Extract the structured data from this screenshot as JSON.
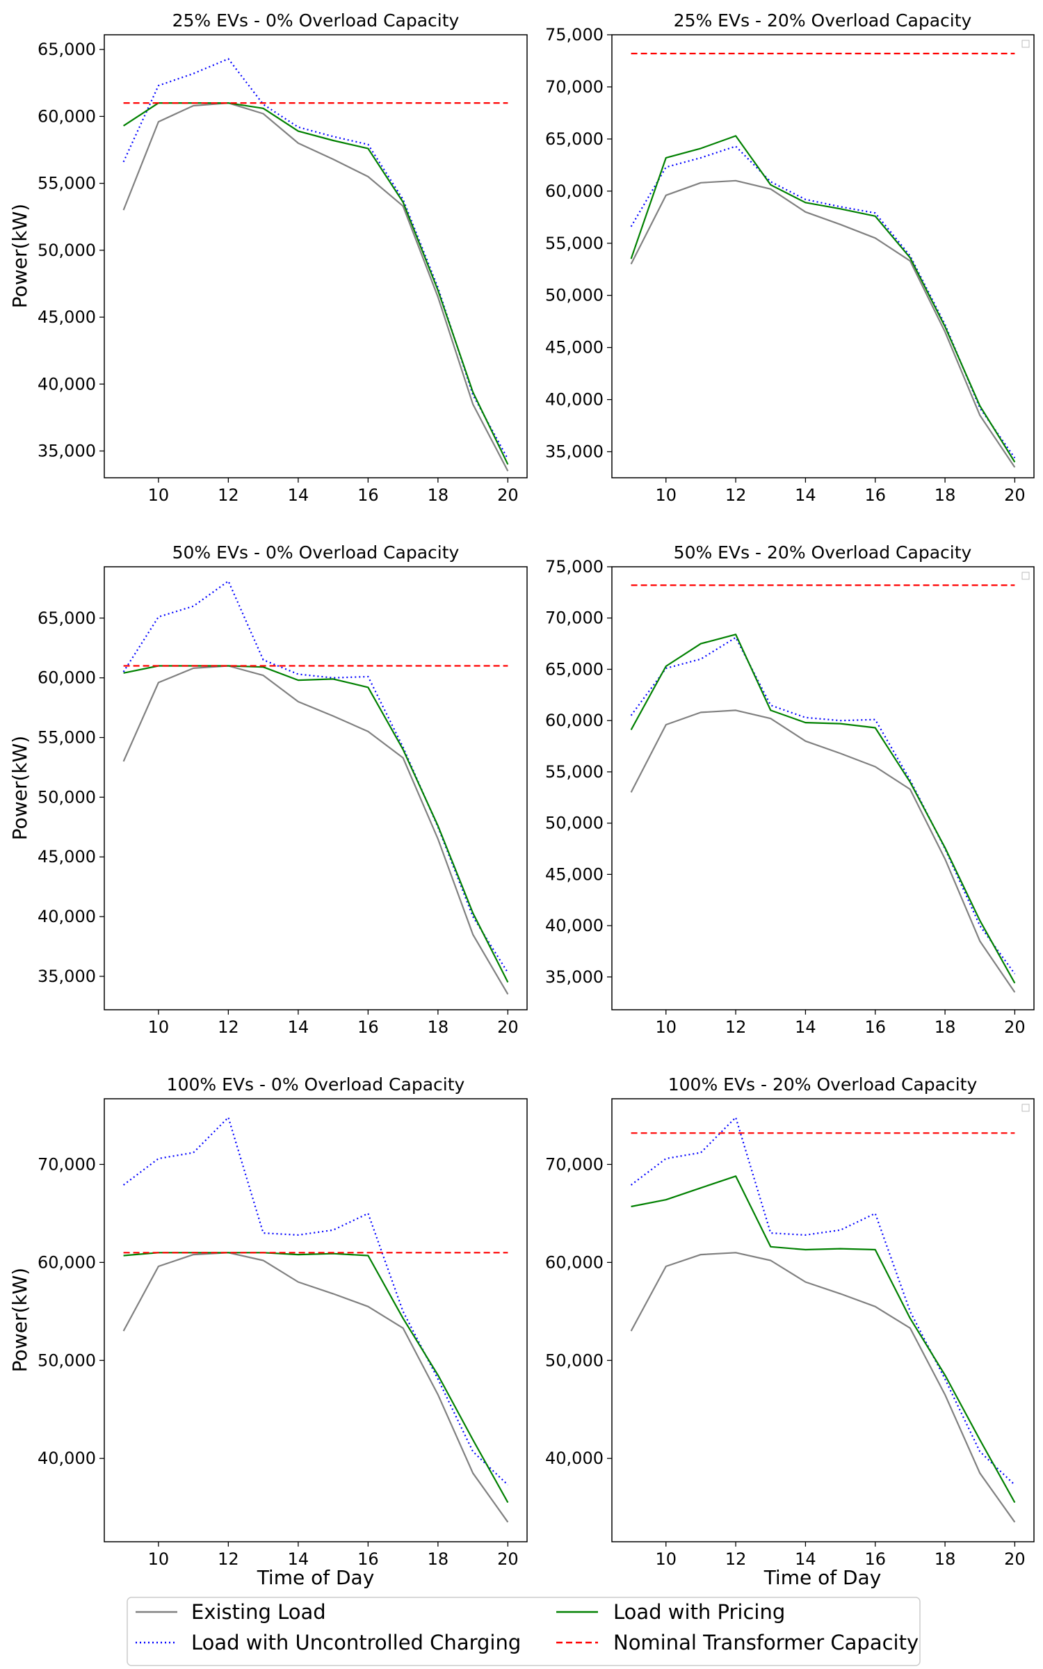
{
  "legend": {
    "existing": "Existing Load",
    "uncontrolled": "Load with Uncontrolled Charging",
    "pricing": "Load with Pricing",
    "capacity": "Nominal Transformer Capacity"
  },
  "colors": {
    "existing": "#808080",
    "uncontrolled": "#0000ff",
    "pricing": "#008000",
    "capacity": "#ff0000"
  },
  "chart_data": [
    {
      "type": "line",
      "title": "25% EVs - 0% Overload Capacity",
      "xlabel": "",
      "ylabel": "Power(kW)",
      "xlim": [
        8.45,
        20.55
      ],
      "ylim": [
        33000,
        66100
      ],
      "xticks": [
        10,
        12,
        14,
        16,
        18,
        20
      ],
      "yticks": [
        35000,
        40000,
        45000,
        50000,
        55000,
        60000,
        65000
      ],
      "ytick_labels": [
        "35,000",
        "40,000",
        "45,000",
        "50,000",
        "55,000",
        "60,000",
        "65,000"
      ],
      "x": [
        9,
        10,
        11,
        12,
        13,
        14,
        15,
        16,
        17,
        18,
        19,
        20
      ],
      "series": [
        {
          "name": "Existing Load",
          "key": "existing",
          "values": [
            53000,
            59600,
            60800,
            61000,
            60200,
            58000,
            56800,
            55500,
            53300,
            46500,
            38500,
            33500
          ]
        },
        {
          "name": "Load with Uncontrolled Charging",
          "key": "uncontrolled",
          "values": [
            56600,
            62300,
            63200,
            64300,
            60900,
            59200,
            58500,
            57900,
            53800,
            47200,
            39200,
            34400
          ]
        },
        {
          "name": "Load with Pricing",
          "key": "pricing",
          "values": [
            59300,
            61000,
            61000,
            61000,
            60600,
            58900,
            58200,
            57600,
            53600,
            47000,
            39400,
            34000
          ]
        },
        {
          "name": "Nominal Transformer Capacity",
          "key": "capacity",
          "values": [
            61000,
            61000,
            61000,
            61000,
            61000,
            61000,
            61000,
            61000,
            61000,
            61000,
            61000,
            61000
          ]
        }
      ]
    },
    {
      "type": "line",
      "title": "25% EVs - 20% Overload Capacity",
      "xlabel": "",
      "ylabel": "",
      "xlim": [
        8.45,
        20.55
      ],
      "ylim": [
        32500,
        75000
      ],
      "xticks": [
        10,
        12,
        14,
        16,
        18,
        20
      ],
      "yticks": [
        35000,
        40000,
        45000,
        50000,
        55000,
        60000,
        65000,
        70000,
        75000
      ],
      "ytick_labels": [
        "35,000",
        "40,000",
        "45,000",
        "50,000",
        "55,000",
        "60,000",
        "65,000",
        "70,000",
        "75,000"
      ],
      "x": [
        9,
        10,
        11,
        12,
        13,
        14,
        15,
        16,
        17,
        18,
        19,
        20
      ],
      "series": [
        {
          "name": "Existing Load",
          "key": "existing",
          "values": [
            53000,
            59600,
            60800,
            61000,
            60200,
            58000,
            56800,
            55500,
            53300,
            46500,
            38500,
            33500
          ]
        },
        {
          "name": "Load with Uncontrolled Charging",
          "key": "uncontrolled",
          "values": [
            56600,
            62300,
            63200,
            64300,
            60900,
            59200,
            58500,
            57900,
            53800,
            47200,
            39200,
            34400
          ]
        },
        {
          "name": "Load with Pricing",
          "key": "pricing",
          "values": [
            53500,
            63200,
            64100,
            65300,
            60600,
            58900,
            58300,
            57600,
            53600,
            47000,
            39400,
            34000
          ]
        },
        {
          "name": "Nominal Transformer Capacity",
          "key": "capacity",
          "values": [
            73200,
            73200,
            73200,
            73200,
            73200,
            73200,
            73200,
            73200,
            73200,
            73200,
            73200,
            73200
          ]
        }
      ]
    },
    {
      "type": "line",
      "title": "50% EVs - 0% Overload Capacity",
      "xlabel": "",
      "ylabel": "Power(kW)",
      "xlim": [
        8.45,
        20.55
      ],
      "ylim": [
        32200,
        69300
      ],
      "xticks": [
        10,
        12,
        14,
        16,
        18,
        20
      ],
      "yticks": [
        35000,
        40000,
        45000,
        50000,
        55000,
        60000,
        65000
      ],
      "ytick_labels": [
        "35,000",
        "40,000",
        "45,000",
        "50,000",
        "55,000",
        "60,000",
        "65,000"
      ],
      "x": [
        9,
        10,
        11,
        12,
        13,
        14,
        15,
        16,
        17,
        18,
        19,
        20
      ],
      "series": [
        {
          "name": "Existing Load",
          "key": "existing",
          "values": [
            53000,
            59600,
            60800,
            61000,
            60200,
            58000,
            56800,
            55500,
            53300,
            46500,
            38500,
            33500
          ]
        },
        {
          "name": "Load with Uncontrolled Charging",
          "key": "uncontrolled",
          "values": [
            60500,
            65100,
            66000,
            68100,
            61500,
            60300,
            60000,
            60100,
            54200,
            47500,
            40000,
            35300
          ]
        },
        {
          "name": "Load with Pricing",
          "key": "pricing",
          "values": [
            60400,
            61000,
            61000,
            61000,
            60900,
            59800,
            59900,
            59200,
            54000,
            47600,
            40300,
            34500
          ]
        },
        {
          "name": "Nominal Transformer Capacity",
          "key": "capacity",
          "values": [
            61000,
            61000,
            61000,
            61000,
            61000,
            61000,
            61000,
            61000,
            61000,
            61000,
            61000,
            61000
          ]
        }
      ]
    },
    {
      "type": "line",
      "title": "50% EVs - 20% Overload Capacity",
      "xlabel": "",
      "ylabel": "",
      "xlim": [
        8.45,
        20.55
      ],
      "ylim": [
        31800,
        75000
      ],
      "xticks": [
        10,
        12,
        14,
        16,
        18,
        20
      ],
      "yticks": [
        35000,
        40000,
        45000,
        50000,
        55000,
        60000,
        65000,
        70000,
        75000
      ],
      "ytick_labels": [
        "35,000",
        "40,000",
        "45,000",
        "50,000",
        "55,000",
        "60,000",
        "65,000",
        "70,000",
        "75,000"
      ],
      "x": [
        9,
        10,
        11,
        12,
        13,
        14,
        15,
        16,
        17,
        18,
        19,
        20
      ],
      "series": [
        {
          "name": "Existing Load",
          "key": "existing",
          "values": [
            53000,
            59600,
            60800,
            61000,
            60200,
            58000,
            56800,
            55500,
            53300,
            46500,
            38500,
            33500
          ]
        },
        {
          "name": "Load with Uncontrolled Charging",
          "key": "uncontrolled",
          "values": [
            60500,
            65100,
            66000,
            68100,
            61500,
            60300,
            60000,
            60100,
            54200,
            47500,
            40000,
            35300
          ]
        },
        {
          "name": "Load with Pricing",
          "key": "pricing",
          "values": [
            59100,
            65300,
            67500,
            68400,
            61000,
            59800,
            59700,
            59300,
            54000,
            47600,
            40500,
            34400
          ]
        },
        {
          "name": "Nominal Transformer Capacity",
          "key": "capacity",
          "values": [
            73200,
            73200,
            73200,
            73200,
            73200,
            73200,
            73200,
            73200,
            73200,
            73200,
            73200,
            73200
          ]
        }
      ]
    },
    {
      "type": "line",
      "title": "100% EVs - 0% Overload Capacity",
      "xlabel": "Time of Day",
      "ylabel": "Power(kW)",
      "xlim": [
        8.45,
        20.55
      ],
      "ylim": [
        31500,
        76700
      ],
      "xticks": [
        10,
        12,
        14,
        16,
        18,
        20
      ],
      "yticks": [
        40000,
        50000,
        60000,
        70000
      ],
      "ytick_labels": [
        "40,000",
        "50,000",
        "60,000",
        "70,000"
      ],
      "x": [
        9,
        10,
        11,
        12,
        13,
        14,
        15,
        16,
        17,
        18,
        19,
        20
      ],
      "series": [
        {
          "name": "Existing Load",
          "key": "existing",
          "values": [
            53000,
            59600,
            60800,
            61000,
            60200,
            58000,
            56800,
            55500,
            53300,
            46500,
            38500,
            33500
          ]
        },
        {
          "name": "Load with Uncontrolled Charging",
          "key": "uncontrolled",
          "values": [
            67900,
            70600,
            71200,
            74800,
            63000,
            62800,
            63300,
            65000,
            55000,
            48100,
            40700,
            37300
          ]
        },
        {
          "name": "Load with Pricing",
          "key": "pricing",
          "values": [
            60700,
            61000,
            61000,
            61000,
            61000,
            60800,
            60900,
            60700,
            54300,
            48500,
            41900,
            35500
          ]
        },
        {
          "name": "Nominal Transformer Capacity",
          "key": "capacity",
          "values": [
            61000,
            61000,
            61000,
            61000,
            61000,
            61000,
            61000,
            61000,
            61000,
            61000,
            61000,
            61000
          ]
        }
      ]
    },
    {
      "type": "line",
      "title": "100% EVs - 20% Overload Capacity",
      "xlabel": "Time of Day",
      "ylabel": "",
      "xlim": [
        8.45,
        20.55
      ],
      "ylim": [
        31500,
        76700
      ],
      "xticks": [
        10,
        12,
        14,
        16,
        18,
        20
      ],
      "yticks": [
        40000,
        50000,
        60000,
        70000
      ],
      "ytick_labels": [
        "40,000",
        "50,000",
        "60,000",
        "70,000"
      ],
      "x": [
        9,
        10,
        11,
        12,
        13,
        14,
        15,
        16,
        17,
        18,
        19,
        20
      ],
      "series": [
        {
          "name": "Existing Load",
          "key": "existing",
          "values": [
            53000,
            59600,
            60800,
            61000,
            60200,
            58000,
            56800,
            55500,
            53300,
            46500,
            38500,
            33500
          ]
        },
        {
          "name": "Load with Uncontrolled Charging",
          "key": "uncontrolled",
          "values": [
            67900,
            70600,
            71200,
            74800,
            63000,
            62800,
            63300,
            65000,
            55000,
            48100,
            40700,
            37300
          ]
        },
        {
          "name": "Load with Pricing",
          "key": "pricing",
          "values": [
            65700,
            66400,
            67600,
            68800,
            61600,
            61300,
            61400,
            61300,
            54300,
            48500,
            41900,
            35500
          ]
        },
        {
          "name": "Nominal Transformer Capacity",
          "key": "capacity",
          "values": [
            73200,
            73200,
            73200,
            73200,
            73200,
            73200,
            73200,
            73200,
            73200,
            73200,
            73200,
            73200
          ]
        }
      ]
    }
  ]
}
